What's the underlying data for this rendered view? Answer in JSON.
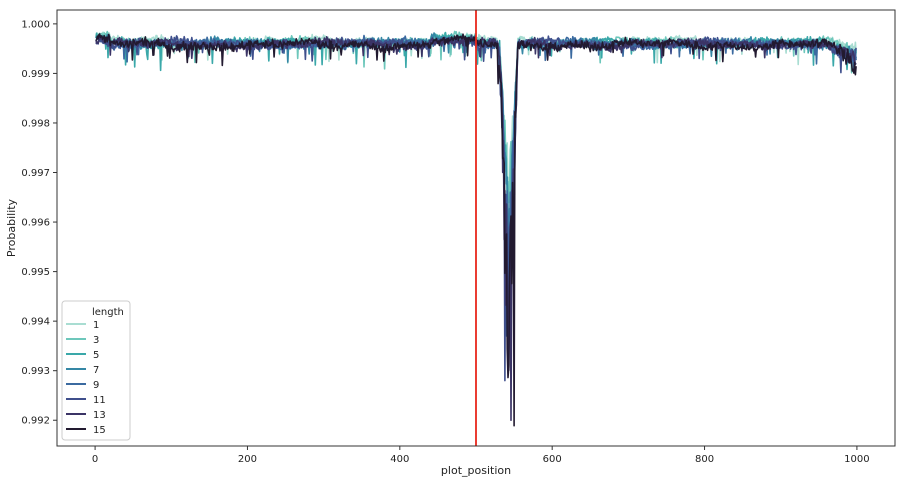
{
  "chart_data": {
    "type": "line",
    "title": "",
    "xlabel": "plot_position",
    "ylabel": "Probability",
    "xlim": [
      -50,
      1050
    ],
    "ylim": [
      0.99148,
      1.00028
    ],
    "xticks": [
      0,
      200,
      400,
      600,
      800,
      1000
    ],
    "xtick_labels": [
      "0",
      "200",
      "400",
      "600",
      "800",
      "1000"
    ],
    "yticks": [
      0.992,
      0.993,
      0.994,
      0.995,
      0.996,
      0.997,
      0.998,
      0.999,
      1.0
    ],
    "ytick_labels": [
      "0.992",
      "0.993",
      "0.994",
      "0.995",
      "0.996",
      "0.997",
      "0.998",
      "0.999",
      "1.000"
    ],
    "grid": false,
    "vline": {
      "x": 500,
      "color": "#e8271c"
    },
    "legend": {
      "title": "length",
      "placement": "lower-left",
      "entries": [
        {
          "label": "1",
          "color": "#a9ddd2"
        },
        {
          "label": "3",
          "color": "#6dc7bb"
        },
        {
          "label": "5",
          "color": "#3aa8a9"
        },
        {
          "label": "7",
          "color": "#3587a5"
        },
        {
          "label": "9",
          "color": "#3b6aa0"
        },
        {
          "label": "11",
          "color": "#3f4f8c"
        },
        {
          "label": "13",
          "color": "#3b3466"
        },
        {
          "label": "15",
          "color": "#221a30"
        }
      ]
    },
    "x_range": [
      1,
      999
    ],
    "series": [
      {
        "name": "1",
        "color": "#a9ddd2",
        "baseline": 0.99965,
        "min_at": {
          "x": 549,
          "y": 0.9952
        }
      },
      {
        "name": "3",
        "color": "#6dc7bb",
        "baseline": 0.99963,
        "min_at": {
          "x": 547,
          "y": 0.9949
        }
      },
      {
        "name": "5",
        "color": "#3aa8a9",
        "baseline": 0.99962,
        "min_at": {
          "x": 545,
          "y": 0.9945
        }
      },
      {
        "name": "7",
        "color": "#3587a5",
        "baseline": 0.99961,
        "min_at": {
          "x": 543,
          "y": 0.9941
        }
      },
      {
        "name": "9",
        "color": "#3b6aa0",
        "baseline": 0.9996,
        "min_at": {
          "x": 540,
          "y": 0.9937
        }
      },
      {
        "name": "11",
        "color": "#3f4f8c",
        "baseline": 0.9996,
        "min_at": {
          "x": 538,
          "y": 0.9928
        }
      },
      {
        "name": "13",
        "color": "#3b3466",
        "baseline": 0.99959,
        "min_at": {
          "x": 546,
          "y": 0.992
        }
      },
      {
        "name": "15",
        "color": "#221a30",
        "baseline": 0.99958,
        "min_at": {
          "x": 550,
          "y": 0.99189
        }
      }
    ]
  }
}
